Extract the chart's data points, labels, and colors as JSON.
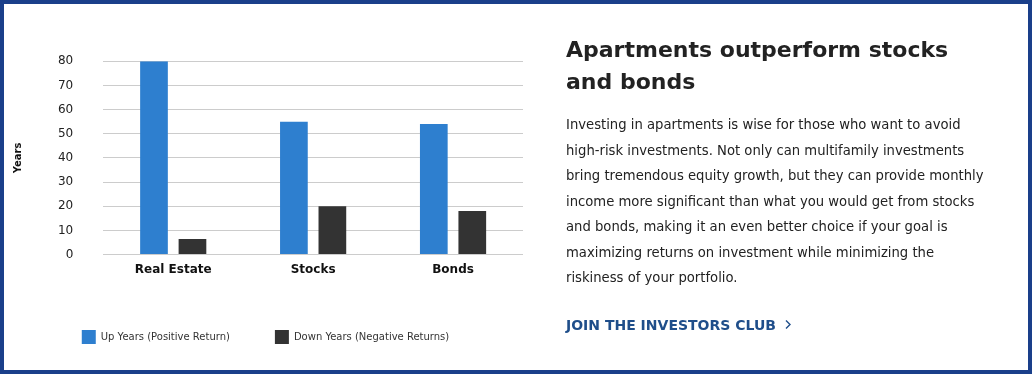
{
  "chart_data": [
    {
      "type": "bar",
      "ylabel": "Years",
      "categories": [
        "Real Estate",
        "Stocks",
        "Bonds"
      ],
      "series": [
        {
          "name": "Up Years (Positive Return)",
          "color": "#2e7fcf",
          "values": [
            80,
            55,
            54
          ]
        },
        {
          "name": "Down Years (Negative Returns)",
          "color": "#333333",
          "values": [
            6.5,
            20,
            18
          ]
        }
      ],
      "ylim": [
        0,
        80
      ],
      "yticks": [
        0,
        10,
        20,
        30,
        40,
        50,
        60,
        70,
        80
      ],
      "grid": "y",
      "legend": "bottom"
    },
    {
      "type": "other",
      "title": "Apartments outperform stocks and bonds",
      "annotations": [
        "Investing in apartments is wise for those who want to avoid high-risk investments. Not only can multifamily investments bring tremendous equity growth, but they can provide monthly income more significant than what you would get from stocks and bonds, making it an even better choice if your goal is maximizing returns on investment while minimizing the riskiness of your portfolio.",
        "JOIN THE INVESTORS CLUB"
      ]
    }
  ]
}
